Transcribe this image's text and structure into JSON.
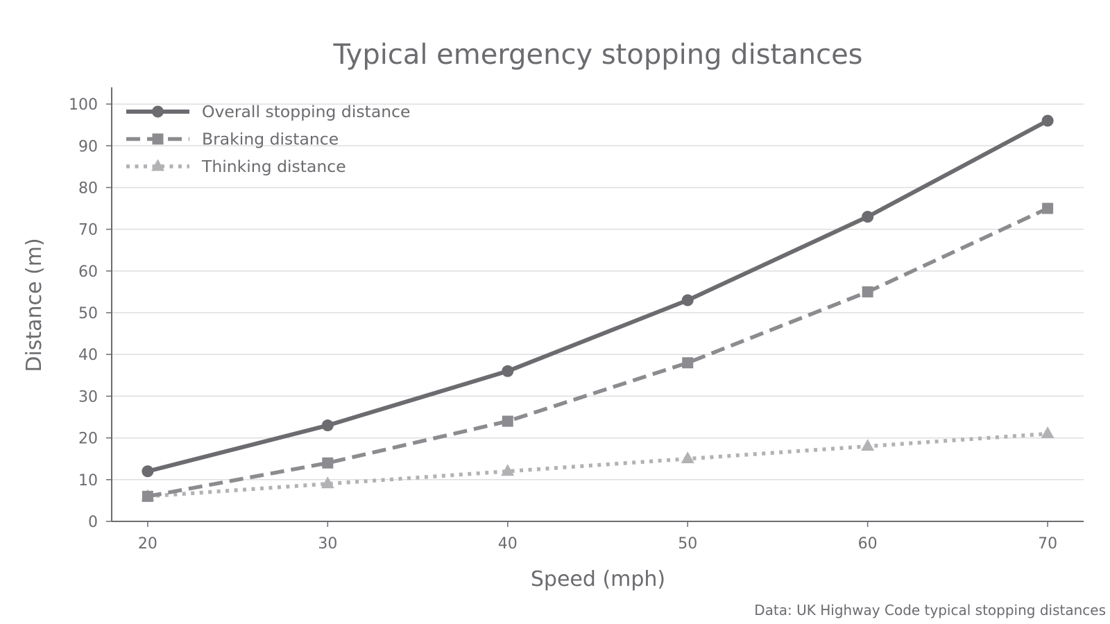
{
  "chart_data": {
    "type": "line",
    "title": "Typical emergency stopping distances",
    "xlabel": "Speed (mph)",
    "ylabel": "Distance (m)",
    "x": [
      20,
      30,
      40,
      50,
      60,
      70
    ],
    "xlim": [
      18,
      72
    ],
    "ylim": [
      0,
      104
    ],
    "xticks": [
      "20",
      "30",
      "40",
      "50",
      "60",
      "70"
    ],
    "yticks": [
      "0",
      "10",
      "20",
      "30",
      "40",
      "50",
      "60",
      "70",
      "80",
      "90",
      "100"
    ],
    "grid": "horizontal",
    "legend_position": "top-left",
    "series": [
      {
        "name": "Overall stopping distance",
        "values": [
          12,
          23,
          36,
          53,
          73,
          96
        ],
        "color": "#6b6b70",
        "line_style": "solid",
        "marker": "circle"
      },
      {
        "name": "Braking distance",
        "values": [
          6,
          14,
          24,
          38,
          55,
          75
        ],
        "color": "#8c8c90",
        "line_style": "dashed",
        "marker": "square"
      },
      {
        "name": "Thinking distance",
        "values": [
          6,
          9,
          12,
          15,
          18,
          21
        ],
        "color": "#b2b2b5",
        "line_style": "dotted",
        "marker": "triangle"
      }
    ],
    "source_note": "Data: UK Highway Code typical stopping distances"
  }
}
